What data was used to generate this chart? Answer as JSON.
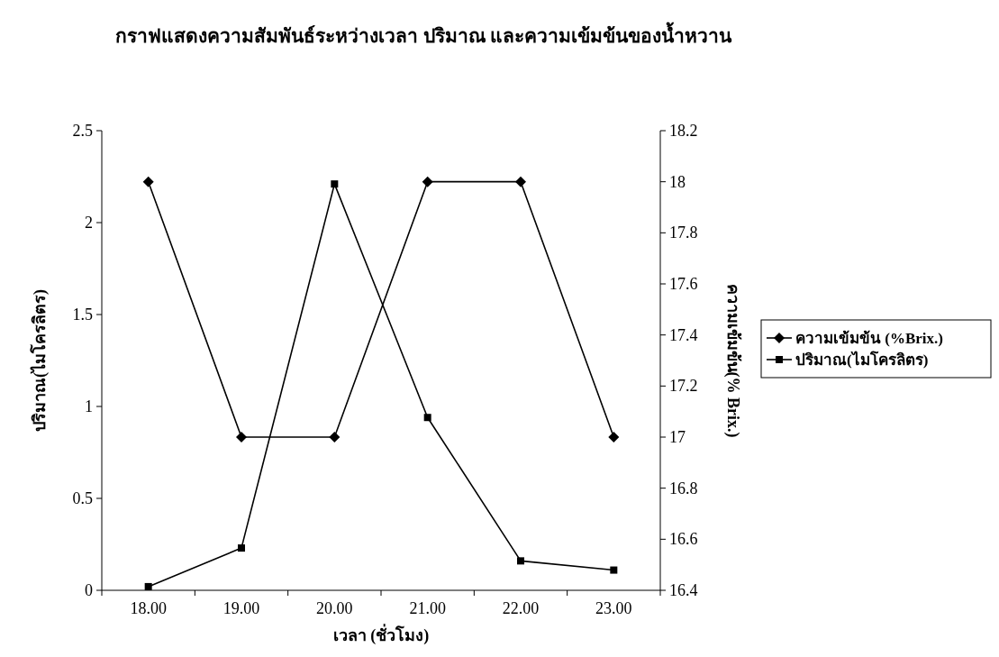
{
  "chart_data": {
    "type": "line",
    "title": "กราฟแสดงความสัมพันธ์ระหว่างเวลา ปริมาณ และความเข้มข้นของน้ำหวาน",
    "xlabel": "เวลา (ชั่วโมง)",
    "ylabel": "ปริมาณ(ไมโครลิตร)",
    "y2label": "ความเข้มข้น(% Brix.)",
    "categories": [
      "18.00",
      "19.00",
      "20.00",
      "21.00",
      "22.00",
      "23.00"
    ],
    "series": [
      {
        "name": "ความเข้มข้น (%Brix.)",
        "color": "#000000",
        "axis": "y2",
        "marker": "diamond",
        "values": [
          18,
          17,
          17,
          18,
          18,
          17
        ]
      },
      {
        "name": "ปริมาณ(ไมโครลิตร)",
        "color": "#000000",
        "marker": "square",
        "values": [
          0.02,
          0.23,
          2.21,
          0.94,
          0.16,
          0.11
        ]
      }
    ],
    "ylim": [
      0,
      2.5
    ],
    "yticks": [
      0,
      0.5,
      1,
      1.5,
      2,
      2.5
    ],
    "y2lim": [
      16.4,
      18.2
    ],
    "y2ticks": [
      16.4,
      16.6,
      16.8,
      17,
      17.2,
      17.4,
      17.6,
      17.8,
      18,
      18.2
    ],
    "grid": false,
    "legend": "right",
    "line_style": "solid"
  }
}
